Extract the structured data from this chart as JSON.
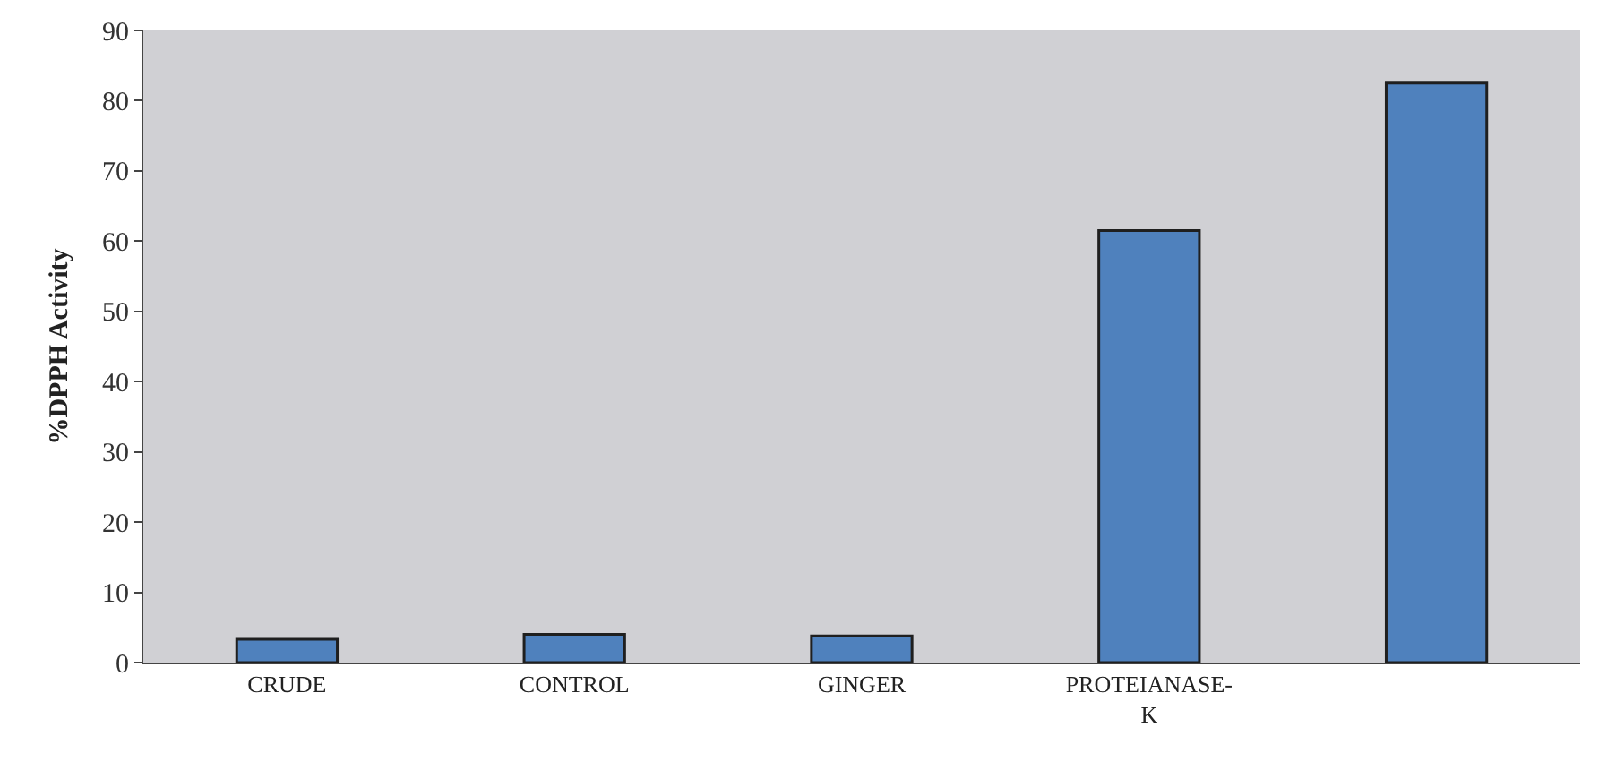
{
  "chart_data": {
    "type": "bar",
    "ylabel": "%DPPH Activity",
    "categories": [
      "CRUDE",
      "CONTROL",
      "GINGER",
      "PROTEIANASE-K",
      null
    ],
    "values": [
      3.3,
      4.0,
      3.8,
      61.5,
      82.5
    ],
    "color": "#4f81bd",
    "ylim": [
      0,
      90
    ],
    "yticks": [
      0,
      10,
      20,
      30,
      40,
      50,
      60,
      70,
      80,
      90
    ],
    "grid": false
  }
}
